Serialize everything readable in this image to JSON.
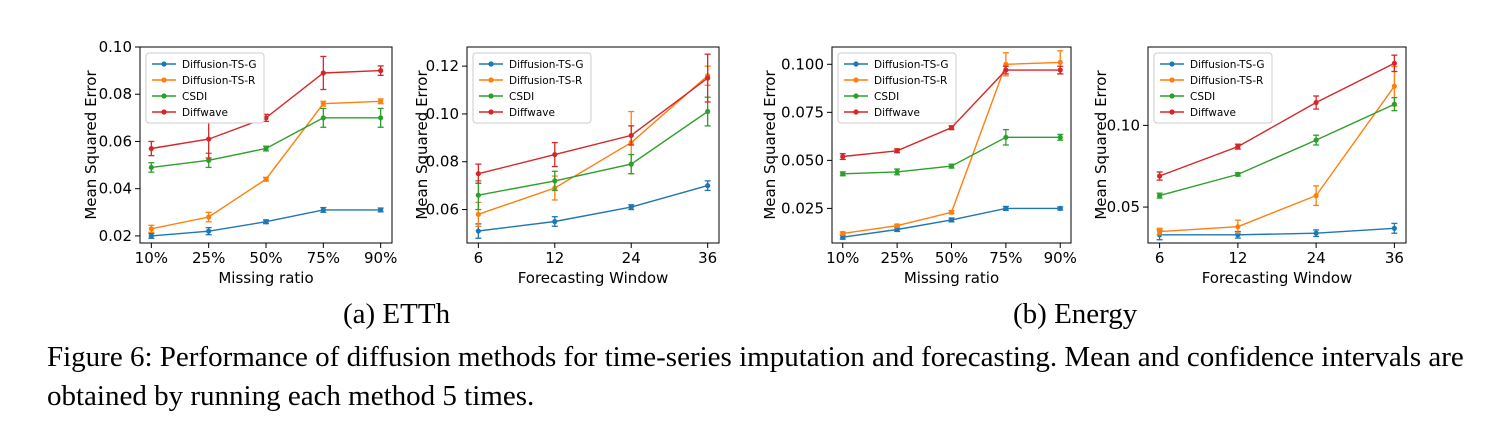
{
  "captions": {
    "a": "(a) ETTh",
    "b": "(b) Energy",
    "figure": "Figure 6: Performance of diffusion methods for time-series imputation and forecasting. Mean and confidence intervals are obtained by running each method 5 times."
  },
  "series_colors": {
    "Diffusion-TS-G": "#1f77b4",
    "Diffusion-TS-R": "#ff7f0e",
    "CSDI": "#2ca02c",
    "Diffwave": "#d62728"
  },
  "chart_data": [
    {
      "type": "line",
      "panel": "(a) ETTh",
      "xlabel": "Missing ratio",
      "ylabel": "Mean Squared Error",
      "categories": [
        "10%",
        "25%",
        "50%",
        "75%",
        "90%"
      ],
      "yticks": [
        "0.02",
        "0.04",
        "0.06",
        "0.08",
        "0.10"
      ],
      "ylim": [
        0.017,
        0.1
      ],
      "legend": "top-left",
      "series": [
        {
          "name": "Diffusion-TS-G",
          "values": [
            0.02,
            0.022,
            0.026,
            0.031,
            0.031
          ],
          "err": [
            0.001,
            0.0015,
            0.0008,
            0.001,
            0.0008
          ]
        },
        {
          "name": "Diffusion-TS-R",
          "values": [
            0.023,
            0.028,
            0.044,
            0.076,
            0.077
          ],
          "err": [
            0.0015,
            0.002,
            0.0008,
            0.001,
            0.001
          ]
        },
        {
          "name": "CSDI",
          "values": [
            0.049,
            0.052,
            0.057,
            0.07,
            0.07
          ],
          "err": [
            0.002,
            0.003,
            0.001,
            0.004,
            0.004
          ]
        },
        {
          "name": "Diffwave",
          "values": [
            0.057,
            0.061,
            0.07,
            0.089,
            0.09
          ],
          "err": [
            0.003,
            0.008,
            0.0015,
            0.007,
            0.002
          ]
        }
      ]
    },
    {
      "type": "line",
      "panel": "(a) ETTh",
      "xlabel": "Forecasting Window",
      "ylabel": "Mean Squared Error",
      "categories": [
        "6",
        "12",
        "24",
        "36"
      ],
      "yticks": [
        "0.06",
        "0.08",
        "0.10",
        "0.12"
      ],
      "ylim": [
        0.046,
        0.128
      ],
      "legend": "top-left",
      "series": [
        {
          "name": "Diffusion-TS-G",
          "values": [
            0.051,
            0.055,
            0.061,
            0.07
          ],
          "err": [
            0.003,
            0.002,
            0.001,
            0.002
          ]
        },
        {
          "name": "Diffusion-TS-R",
          "values": [
            0.058,
            0.069,
            0.088,
            0.116
          ],
          "err": [
            0.005,
            0.005,
            0.013,
            0.004
          ]
        },
        {
          "name": "CSDI",
          "values": [
            0.066,
            0.072,
            0.079,
            0.101
          ],
          "err": [
            0.006,
            0.004,
            0.004,
            0.006
          ]
        },
        {
          "name": "Diffwave",
          "values": [
            0.075,
            0.083,
            0.091,
            0.115
          ],
          "err": [
            0.004,
            0.005,
            0.004,
            0.01
          ]
        }
      ]
    },
    {
      "type": "line",
      "panel": "(b) Energy",
      "xlabel": "Missing ratio",
      "ylabel": "Mean Squared Error",
      "categories": [
        "10%",
        "25%",
        "50%",
        "75%",
        "90%"
      ],
      "yticks": [
        "0.025",
        "0.050",
        "0.075",
        "0.100"
      ],
      "ylim": [
        0.007,
        0.109
      ],
      "legend": "top-left",
      "series": [
        {
          "name": "Diffusion-TS-G",
          "values": [
            0.01,
            0.014,
            0.019,
            0.025,
            0.025
          ],
          "err": [
            0.001,
            0.001,
            0.001,
            0.001,
            0.0008
          ]
        },
        {
          "name": "Diffusion-TS-R",
          "values": [
            0.012,
            0.016,
            0.023,
            0.1,
            0.101
          ],
          "err": [
            0.0008,
            0.0008,
            0.0008,
            0.006,
            0.006
          ]
        },
        {
          "name": "CSDI",
          "values": [
            0.043,
            0.044,
            0.047,
            0.062,
            0.062
          ],
          "err": [
            0.001,
            0.0015,
            0.001,
            0.004,
            0.0015
          ]
        },
        {
          "name": "Diffwave",
          "values": [
            0.052,
            0.055,
            0.067,
            0.097,
            0.097
          ],
          "err": [
            0.0015,
            0.001,
            0.001,
            0.002,
            0.002
          ]
        }
      ]
    },
    {
      "type": "line",
      "panel": "(b) Energy",
      "xlabel": "Forecasting Window",
      "ylabel": "Mean Squared Error",
      "categories": [
        "6",
        "12",
        "24",
        "36"
      ],
      "yticks": [
        "0.05",
        "0.10"
      ],
      "ylim": [
        0.028,
        0.148
      ],
      "legend": "top-left",
      "series": [
        {
          "name": "Diffusion-TS-G",
          "values": [
            0.033,
            0.033,
            0.034,
            0.037
          ],
          "err": [
            0.003,
            0.002,
            0.002,
            0.003
          ]
        },
        {
          "name": "Diffusion-TS-R",
          "values": [
            0.035,
            0.038,
            0.057,
            0.124
          ],
          "err": [
            0.002,
            0.004,
            0.006,
            0.012
          ]
        },
        {
          "name": "CSDI",
          "values": [
            0.057,
            0.07,
            0.091,
            0.113
          ],
          "err": [
            0.0015,
            0.001,
            0.003,
            0.004
          ]
        },
        {
          "name": "Diffwave",
          "values": [
            0.069,
            0.087,
            0.114,
            0.138
          ],
          "err": [
            0.0025,
            0.0015,
            0.004,
            0.005
          ]
        }
      ]
    }
  ]
}
